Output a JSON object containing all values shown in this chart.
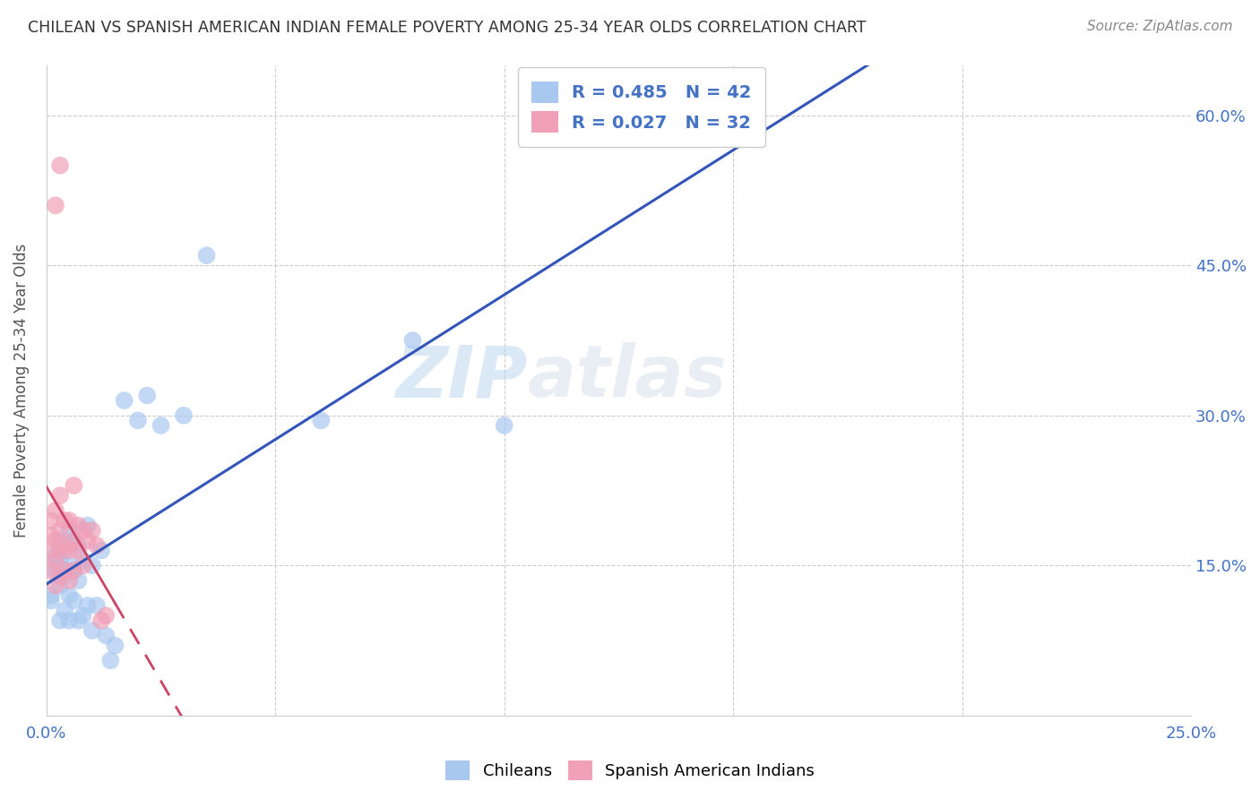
{
  "title": "CHILEAN VS SPANISH AMERICAN INDIAN FEMALE POVERTY AMONG 25-34 YEAR OLDS CORRELATION CHART",
  "source": "Source: ZipAtlas.com",
  "ylabel": "Female Poverty Among 25-34 Year Olds",
  "xlim": [
    0.0,
    0.25
  ],
  "ylim": [
    0.0,
    0.65
  ],
  "xticks": [
    0.0,
    0.05,
    0.1,
    0.15,
    0.2,
    0.25
  ],
  "yticks": [
    0.0,
    0.15,
    0.3,
    0.45,
    0.6
  ],
  "r_chilean": 0.485,
  "n_chilean": 42,
  "r_spanish": 0.027,
  "n_spanish": 32,
  "color_chilean": "#A8C8F0",
  "color_chilean_line": "#3355BB",
  "color_spanish": "#F0A0B8",
  "color_spanish_line": "#CC4466",
  "background_color": "#ffffff",
  "chilean_x": [
    0.001,
    0.001,
    0.002,
    0.002,
    0.002,
    0.003,
    0.003,
    0.003,
    0.003,
    0.004,
    0.004,
    0.004,
    0.005,
    0.005,
    0.005,
    0.005,
    0.006,
    0.006,
    0.006,
    0.007,
    0.007,
    0.007,
    0.008,
    0.008,
    0.009,
    0.009,
    0.01,
    0.01,
    0.011,
    0.012,
    0.013,
    0.014,
    0.015,
    0.017,
    0.02,
    0.022,
    0.025,
    0.03,
    0.035,
    0.06,
    0.08,
    0.1
  ],
  "chilean_y": [
    0.115,
    0.12,
    0.145,
    0.15,
    0.16,
    0.095,
    0.13,
    0.155,
    0.175,
    0.105,
    0.14,
    0.165,
    0.095,
    0.12,
    0.15,
    0.185,
    0.115,
    0.145,
    0.175,
    0.095,
    0.135,
    0.17,
    0.1,
    0.155,
    0.11,
    0.19,
    0.085,
    0.15,
    0.11,
    0.165,
    0.08,
    0.055,
    0.07,
    0.315,
    0.295,
    0.32,
    0.29,
    0.3,
    0.46,
    0.295,
    0.375,
    0.29
  ],
  "spanish_x": [
    0.001,
    0.001,
    0.001,
    0.001,
    0.002,
    0.002,
    0.002,
    0.002,
    0.003,
    0.003,
    0.003,
    0.003,
    0.004,
    0.004,
    0.004,
    0.005,
    0.005,
    0.005,
    0.006,
    0.006,
    0.006,
    0.007,
    0.007,
    0.008,
    0.008,
    0.009,
    0.01,
    0.011,
    0.012,
    0.013,
    0.002,
    0.003
  ],
  "spanish_y": [
    0.145,
    0.165,
    0.18,
    0.195,
    0.13,
    0.155,
    0.175,
    0.205,
    0.14,
    0.165,
    0.185,
    0.22,
    0.145,
    0.17,
    0.195,
    0.135,
    0.165,
    0.195,
    0.145,
    0.175,
    0.23,
    0.165,
    0.19,
    0.15,
    0.185,
    0.175,
    0.185,
    0.17,
    0.095,
    0.1,
    0.51,
    0.55
  ]
}
